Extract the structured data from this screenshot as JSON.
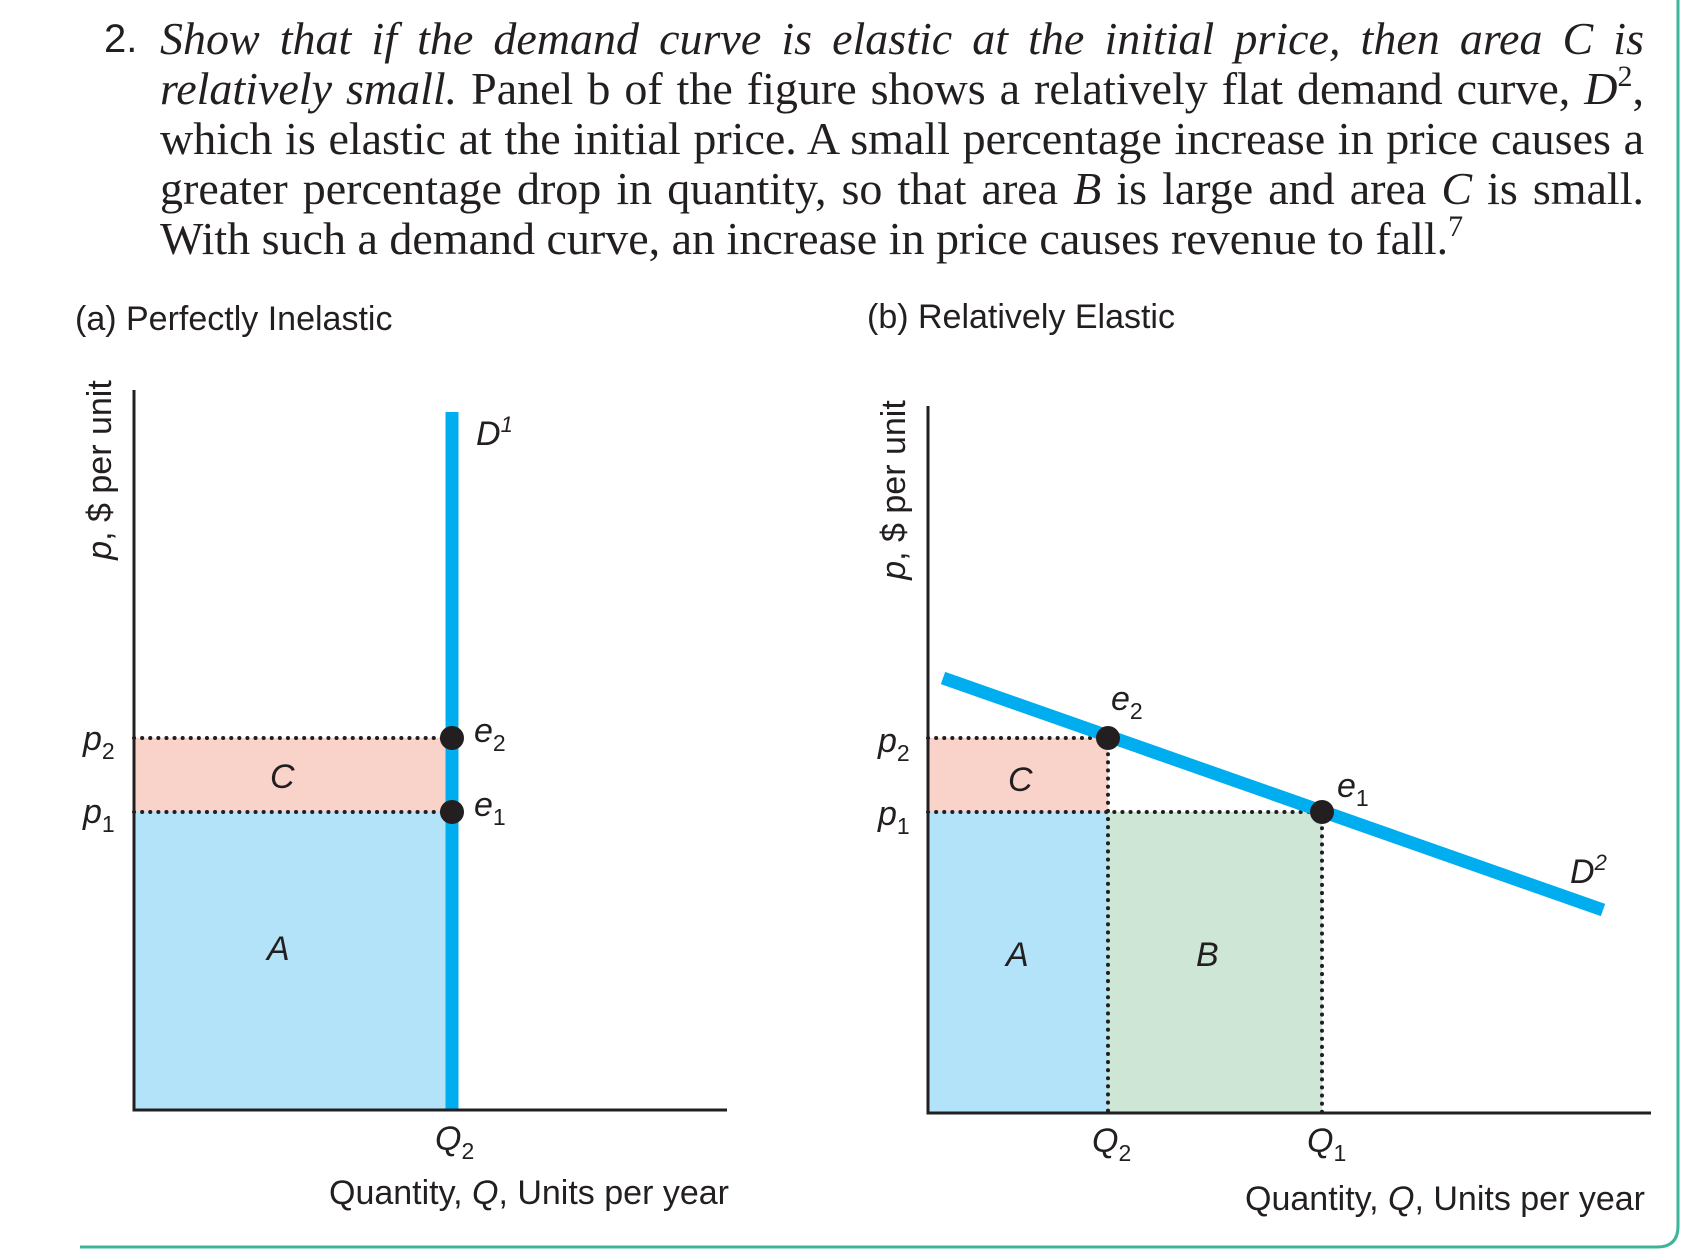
{
  "paragraph": {
    "number": "2.",
    "lead_italic": "Show that if the demand curve is elastic at the initial price, then area C is relatively small.",
    "t1": " Panel b of the figure shows a relatively flat demand curve, ",
    "d2_letter": "D",
    "d2_sup": "2",
    "t2": ", which is elastic at the initial price. A small percentage increase in price causes a greater percentage drop in quantity, so that area ",
    "area_b": "B",
    "t3": " is large and area ",
    "area_c": "C",
    "t4": " is small. With such a demand curve, an increase in price causes revenue to fall.",
    "footnote": "7"
  },
  "figure": {
    "panel_a": {
      "title": "(a) Perfectly Inelastic",
      "ylabel_var": "p",
      "ylabel_rest": ", $ per unit",
      "xlabel_pre": "Quantity, ",
      "xlabel_var": "Q",
      "xlabel_post": ", Units per year",
      "p2": "p",
      "p2_sub": "2",
      "p1": "p",
      "p1_sub": "1",
      "q2": "Q",
      "q2_sub": "2",
      "curve": "D",
      "curve_sup": "1",
      "e2": "e",
      "e2_sub": "2",
      "e1": "e",
      "e1_sub": "1",
      "area_c": "C",
      "area_a": "A"
    },
    "panel_b": {
      "title": "(b) Relatively Elastic",
      "ylabel_var": "p",
      "ylabel_rest": ", $ per unit",
      "xlabel_pre": "Quantity, ",
      "xlabel_var": "Q",
      "xlabel_post": ", Units per year",
      "p2": "p",
      "p2_sub": "2",
      "p1": "p",
      "p1_sub": "1",
      "q2": "Q",
      "q2_sub": "2",
      "q1": "Q",
      "q1_sub": "1",
      "curve": "D",
      "curve_sup": "2",
      "e2": "e",
      "e2_sub": "2",
      "e1": "e",
      "e1_sub": "1",
      "area_c": "C",
      "area_a": "A",
      "area_b": "B"
    },
    "colors": {
      "demand_curve": "#00aeef",
      "area_a": "#b3e3f8",
      "area_b": "#cde6d6",
      "area_c": "#f9d2c9",
      "axis": "#231f20",
      "frame_accent": "#3cb69a"
    }
  }
}
